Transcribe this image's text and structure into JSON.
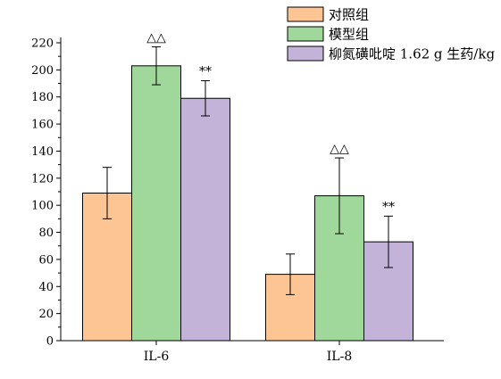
{
  "chart_data": {
    "type": "bar",
    "categories": [
      "IL-6",
      "IL-8"
    ],
    "series": [
      {
        "name": "对照组",
        "color": "#fcc593",
        "values": [
          109,
          49
        ],
        "error": [
          19,
          15
        ]
      },
      {
        "name": "模型组",
        "color": "#9fd89a",
        "values": [
          203,
          107
        ],
        "error": [
          14,
          28
        ]
      },
      {
        "name": "柳氮磺吡啶 1.62 g 生药/kg",
        "color": "#c4b3d8",
        "values": [
          179,
          73
        ],
        "error": [
          13,
          19
        ]
      }
    ],
    "annotations": [
      {
        "text": "△△",
        "category": "IL-6",
        "series": "模型组"
      },
      {
        "text": "**",
        "category": "IL-6",
        "series": "柳氮磺吡啶 1.62 g 生药/kg"
      },
      {
        "text": "△△",
        "category": "IL-8",
        "series": "模型组"
      },
      {
        "text": "**",
        "category": "IL-8",
        "series": "柳氮磺吡啶 1.62 g 生药/kg"
      }
    ],
    "yticks": [
      "0",
      "20",
      "40",
      "60",
      "80",
      "100",
      "120",
      "140",
      "160",
      "180",
      "200",
      "220"
    ],
    "ylim": [
      0,
      230
    ],
    "legend_position": "top-right",
    "grid": false
  }
}
